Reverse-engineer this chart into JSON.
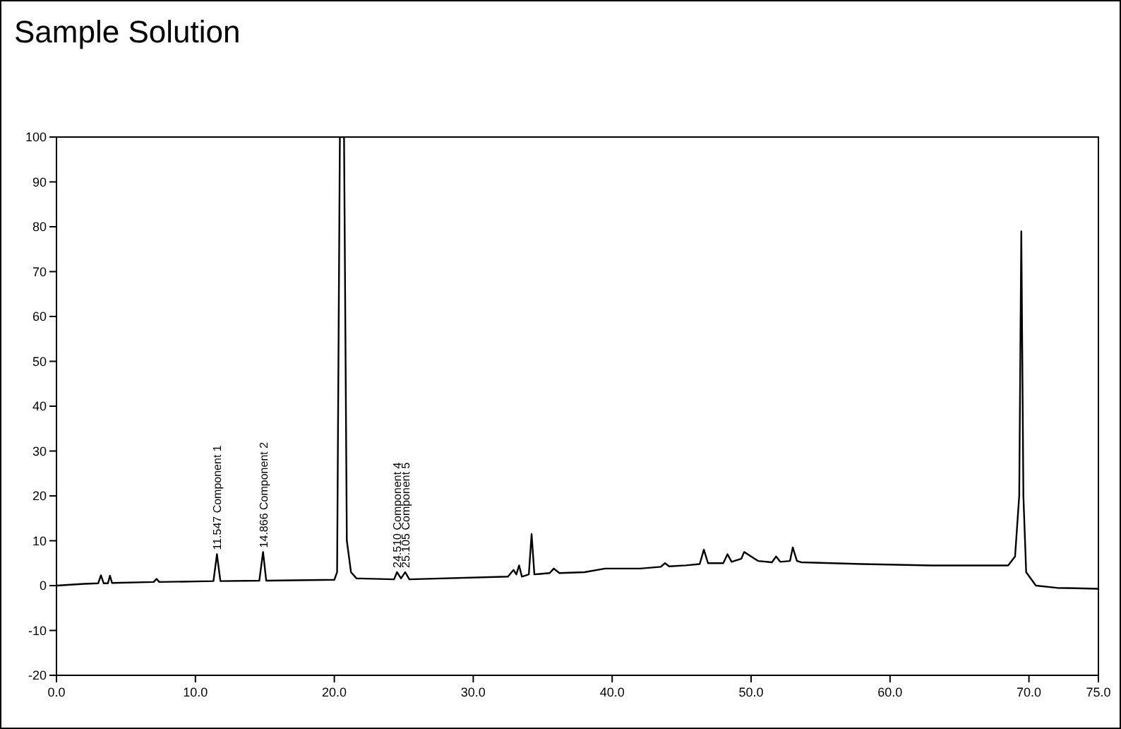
{
  "chart_data": {
    "type": "line",
    "title": "Sample Solution",
    "xlim": [
      0,
      75
    ],
    "ylim": [
      -20,
      100
    ],
    "xticks": [
      {
        "value": 0,
        "label": "0.0"
      },
      {
        "value": 10,
        "label": "10.0"
      },
      {
        "value": 20,
        "label": "20.0"
      },
      {
        "value": 30,
        "label": "30.0"
      },
      {
        "value": 40,
        "label": "40.0"
      },
      {
        "value": 50,
        "label": "50.0"
      },
      {
        "value": 60,
        "label": "60.0"
      },
      {
        "value": 70,
        "label": "70.0"
      },
      {
        "value": 75,
        "label": "75.0"
      }
    ],
    "yticks": [
      -20,
      -10,
      0,
      10,
      20,
      30,
      40,
      50,
      60,
      70,
      80,
      90,
      100
    ],
    "marker": "none",
    "line_style": "solid",
    "series": [
      {
        "color": "#000000",
        "x": [
          0,
          2,
          3.0,
          3.2,
          3.4,
          3.7,
          3.85,
          4.0,
          7.0,
          7.2,
          7.4,
          11.3,
          11.55,
          11.8,
          14.6,
          14.87,
          15.1,
          20.0,
          20.2,
          20.4,
          20.7,
          20.9,
          21.2,
          21.6,
          24.3,
          24.51,
          24.8,
          25.1,
          25.4,
          32.5,
          32.9,
          33.1,
          33.3,
          33.5,
          34.0,
          34.2,
          34.4,
          35.5,
          35.8,
          36.2,
          38.0,
          39.5,
          42,
          43.5,
          43.8,
          44.1,
          45.3,
          46.3,
          46.6,
          46.9,
          48.0,
          48.3,
          48.6,
          49.3,
          49.5,
          50.0,
          50.5,
          51.5,
          51.8,
          52.1,
          52.8,
          53.0,
          53.3,
          53.6,
          58,
          63,
          68.5,
          69.0,
          69.3,
          69.45,
          69.6,
          69.8,
          70.5,
          72,
          75
        ],
        "values": [
          0,
          0.4,
          0.5,
          2.3,
          0.5,
          0.5,
          2.2,
          0.6,
          0.8,
          1.5,
          0.8,
          1.0,
          7.0,
          1.0,
          1.1,
          7.5,
          1.1,
          1.3,
          3,
          100,
          100,
          10,
          3,
          1.6,
          1.4,
          3.0,
          1.6,
          3.0,
          1.4,
          2.0,
          3.5,
          2.5,
          4.5,
          2.0,
          2.5,
          11.5,
          2.5,
          2.8,
          3.8,
          2.8,
          3.0,
          3.8,
          3.8,
          4.2,
          5.0,
          4.3,
          4.5,
          4.8,
          8.0,
          5.0,
          5.0,
          7.0,
          5.3,
          6.0,
          7.5,
          6.5,
          5.5,
          5.2,
          6.5,
          5.3,
          5.5,
          8.5,
          5.5,
          5.2,
          4.8,
          4.5,
          4.5,
          6.5,
          20,
          79,
          20,
          3,
          0,
          -0.5,
          -0.7
        ]
      }
    ],
    "annotations": [
      {
        "text": "11.547 Component 1",
        "x": 11.547,
        "y": 7.0
      },
      {
        "text": "14.866 Component 2",
        "x": 14.866,
        "y": 7.5
      },
      {
        "text": "24.510 Component 4",
        "x": 24.51,
        "y": 3.0
      },
      {
        "text": "25.105 Component 5",
        "x": 25.105,
        "y": 3.0
      }
    ]
  }
}
